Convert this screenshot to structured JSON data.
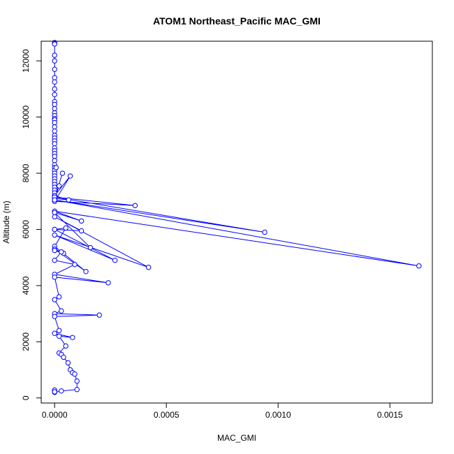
{
  "chart_data": {
    "type": "line",
    "title": "ATOM1 Northeast_Pacific MAC_GMI",
    "xlabel": "MAC_GMI",
    "ylabel": "Altitude (m)",
    "xlim": [
      -6e-05,
      0.00169
    ],
    "ylim": [
      -180,
      12700
    ],
    "xticks": [
      0.0,
      0.0005,
      0.001,
      0.0015
    ],
    "xtick_labels": [
      "0.0000",
      "0.0005",
      "0.0010",
      "0.0015"
    ],
    "yticks": [
      0,
      2000,
      4000,
      6000,
      8000,
      10000,
      12000
    ],
    "ytick_labels": [
      "0",
      "2000",
      "4000",
      "6000",
      "8000",
      "10000",
      "12000"
    ],
    "grid": false,
    "color": "#0000ff",
    "marker": "open-circle",
    "series": [
      {
        "x": [
          0.0,
          0.0,
          0.0,
          0.0,
          0.0,
          0.0,
          0.0,
          0.0,
          0.0,
          0.0,
          0.0,
          0.0,
          0.0,
          0.0,
          0.0,
          0.0,
          0.0,
          0.0,
          0.0,
          0.0,
          0.0,
          0.0,
          0.0,
          0.0,
          0.0,
          0.0,
          0.0,
          0.0,
          0.0,
          0.0,
          0.0,
          0.0,
          0.0,
          0.0,
          0.0,
          0.0,
          0.0,
          0.0,
          0.0,
          0.0,
          6.25e-05,
          0.0,
          2e-05,
          0.0,
          3.5e-05,
          0.0,
          6.5e-06,
          0.0,
          7e-05,
          0.0,
          0.00036,
          0.0,
          0.00094,
          0.0,
          0.00163,
          0.0,
          0.00012,
          0.0,
          0.00016,
          0.0,
          0.00027,
          0.0,
          0.00042,
          0.0,
          0.00012,
          0.0,
          5e-05,
          0.0,
          0.00014,
          0.0,
          4e-05,
          0.0,
          3e-05,
          0.0,
          9e-05,
          0.0,
          0.00024,
          0.0,
          2e-05,
          0.0,
          3e-05,
          0.0,
          0.0002,
          0.0,
          2e-05,
          0.0,
          8e-05,
          2e-05,
          5e-05,
          2e-05,
          3e-05,
          4e-05,
          6e-05,
          7e-05,
          8e-05,
          9e-05,
          0.0001,
          0.0001,
          3e-05,
          0.0,
          0.0,
          0.0,
          0.0
        ],
        "y": [
          12650,
          12600,
          12200,
          12000,
          11700,
          11400,
          11250,
          11000,
          10800,
          10550,
          10450,
          10300,
          10150,
          10050,
          9950,
          9900,
          9800,
          9650,
          9500,
          9350,
          9250,
          9150,
          9050,
          8900,
          8800,
          8700,
          8600,
          8450,
          8300,
          8200,
          8100,
          8000,
          7900,
          7800,
          7700,
          7600,
          7500,
          7400,
          7300,
          7200,
          7050,
          7100,
          7550,
          7100,
          8000,
          7100,
          8200,
          7200,
          7900,
          7000,
          6850,
          7150,
          5900,
          7050,
          4700,
          6650,
          6300,
          6600,
          5350,
          6000,
          4900,
          5800,
          4650,
          6450,
          5950,
          6000,
          6050,
          5400,
          4500,
          5300,
          5150,
          5250,
          5200,
          4900,
          4750,
          4400,
          4100,
          4300,
          3600,
          3500,
          3100,
          3000,
          2950,
          2900,
          2400,
          2300,
          2150,
          2200,
          1850,
          1600,
          1550,
          1450,
          1250,
          1000,
          900,
          850,
          600,
          300,
          250,
          200,
          250,
          280,
          220
        ]
      }
    ]
  }
}
